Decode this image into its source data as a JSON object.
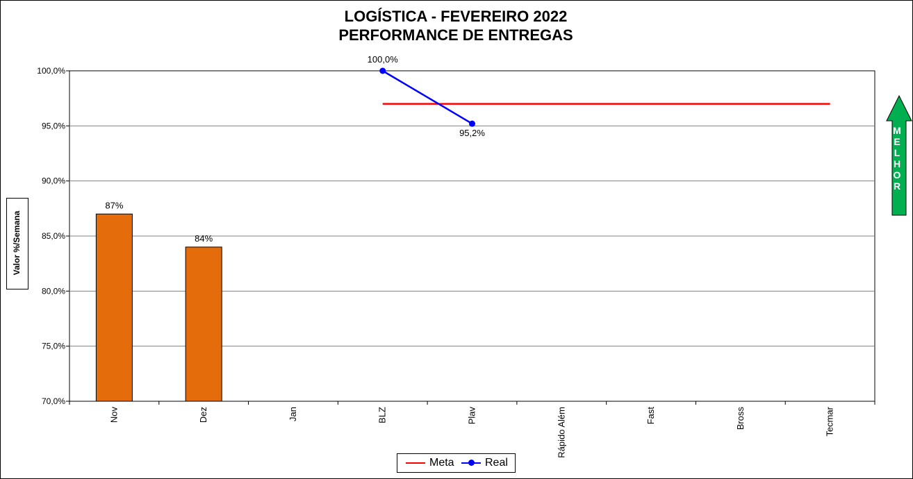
{
  "chart_data": {
    "type": "bar",
    "title": [
      "LOGÍSTICA - FEVEREIRO 2022",
      "PERFORMANCE DE ENTREGAS"
    ],
    "ylabel": "Valor %/Semana",
    "xlabel": "",
    "ylim": [
      70,
      100
    ],
    "yticks": [
      100,
      95,
      90,
      85,
      80,
      75,
      70
    ],
    "ytick_labels": [
      "100,0%",
      "95,0%",
      "90,0%",
      "85,0%",
      "80,0%",
      "75,0%",
      "70,0%"
    ],
    "categories": [
      "Nov",
      "Dez",
      "Jan",
      "BLZ",
      "Plav",
      "Rápido Além",
      "Fast",
      "Bross",
      "Tecmar"
    ],
    "grid": true,
    "legend_position": "bottom",
    "bars": {
      "values": [
        87,
        84,
        null,
        null,
        null,
        null,
        null,
        null,
        null
      ],
      "labels": [
        "87%",
        "84%",
        "",
        "",
        "",
        "",
        "",
        "",
        ""
      ],
      "color": "#E46C0A"
    },
    "series": [
      {
        "name": "Meta",
        "type": "line",
        "values": [
          null,
          null,
          null,
          97,
          97,
          97,
          97,
          97,
          97
        ],
        "color": "#FF0000",
        "marker": "none"
      },
      {
        "name": "Real",
        "type": "line",
        "values": [
          null,
          null,
          null,
          100,
          95.2,
          null,
          null,
          null,
          null
        ],
        "labels": [
          "",
          "",
          "",
          "100,0%",
          "95,2%",
          "",
          "",
          "",
          ""
        ],
        "color": "#0000FF",
        "marker": "circle"
      }
    ],
    "annotation": {
      "text": "MELHOR",
      "direction": "up",
      "color": "#00B050"
    }
  }
}
